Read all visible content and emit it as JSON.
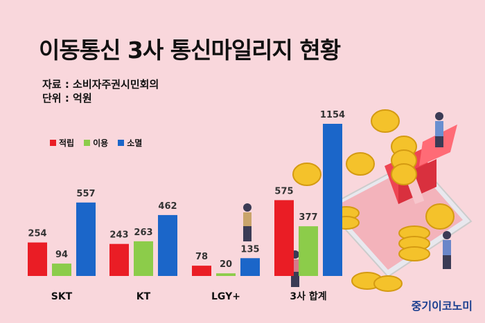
{
  "title": "이동통신 3사 통신마일리지 현황",
  "source_label": "자료 : 소비자주권시민회의",
  "unit_label": "단위 : 억원",
  "brand": "중기이코노미",
  "colors": {
    "earn": "#ea1d25",
    "use": "#8ccc4a",
    "expire": "#1b66c9",
    "background": "#f9d7dc"
  },
  "chart_data": {
    "type": "bar",
    "categories": [
      "SKT",
      "KT",
      "LGY+",
      "3사 합계"
    ],
    "series": [
      {
        "name": "적립",
        "values": [
          254,
          243,
          78,
          575
        ]
      },
      {
        "name": "이용",
        "values": [
          94,
          263,
          20,
          377
        ]
      },
      {
        "name": "소멸",
        "values": [
          557,
          462,
          135,
          1154
        ]
      }
    ],
    "unit": "억원",
    "legend_position": "top-left",
    "grid": false
  }
}
